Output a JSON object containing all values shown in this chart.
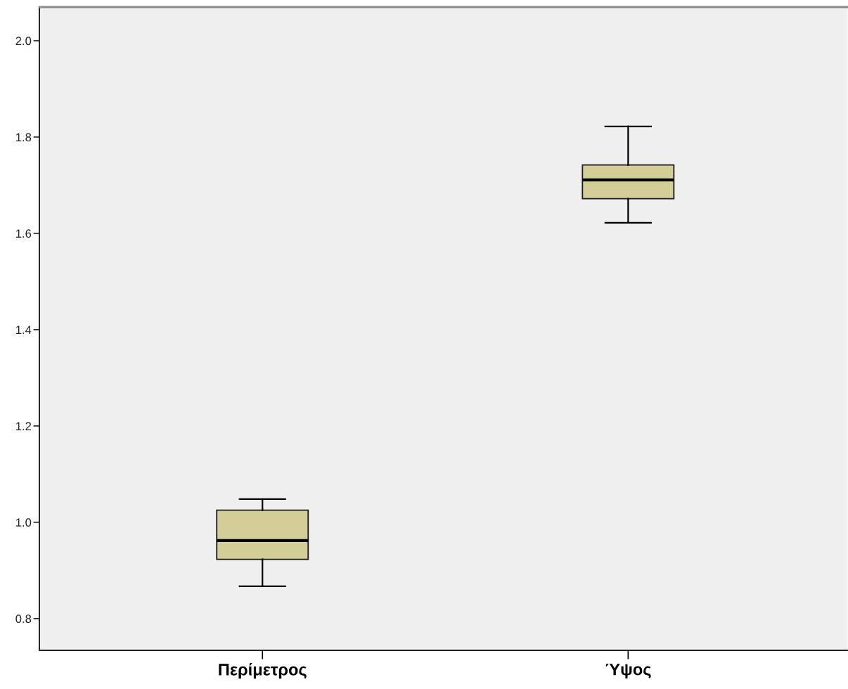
{
  "chart_data": {
    "type": "box",
    "categories": [
      "Περίμετρος",
      "Ύψος"
    ],
    "boxes": [
      {
        "low": 0.867,
        "q1": 0.923,
        "median": 0.962,
        "q3": 1.025,
        "high": 1.048
      },
      {
        "low": 1.622,
        "q1": 1.672,
        "median": 1.711,
        "q3": 1.742,
        "high": 1.822
      }
    ],
    "colors": [
      "#d3ce98",
      "#d3ce98"
    ],
    "ylim": [
      0.734,
      2.07
    ],
    "yticks": [
      0.8,
      {
        "value": 1.0,
        "label": "1.0"
      },
      1.2,
      1.4,
      1.6,
      1.8,
      {
        "value": 2.0,
        "label": "2.0"
      }
    ],
    "grid": false
  }
}
